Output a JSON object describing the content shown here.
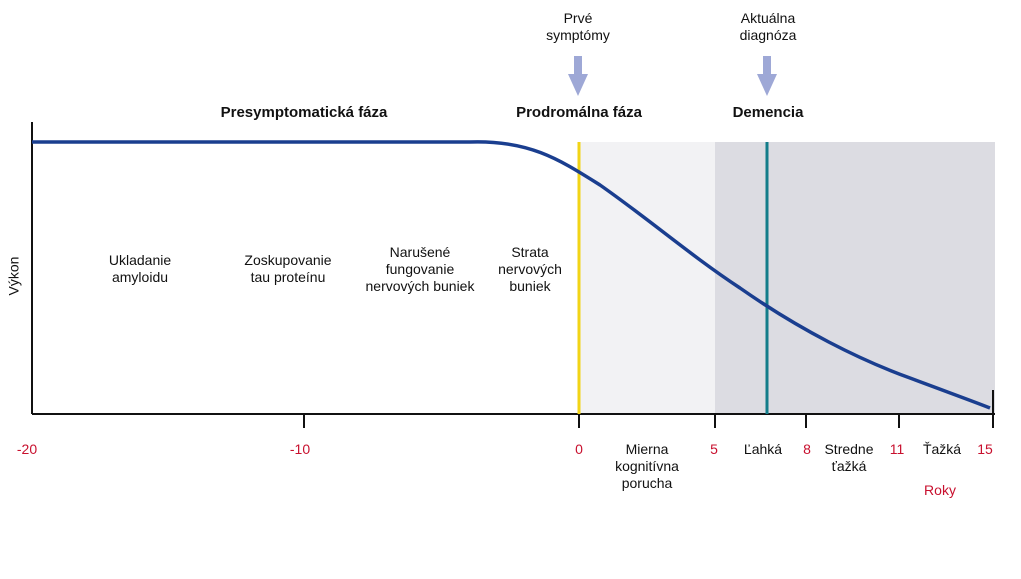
{
  "phases": {
    "presymptomatic": "Presymptomatická fáza",
    "prodromal": "Prodromálna fáza",
    "dementia": "Demencia"
  },
  "markers": {
    "first_symptoms": "Prvé\nsymptómy",
    "current_diagnosis": "Aktuálna\ndiagnóza"
  },
  "processes": [
    "Ukladanie\namyloidu",
    "Zoskupovanie\ntau proteínu",
    "Narušené\nfungovanie\nnervových buniek",
    "Strata\nnervových\nbuniek"
  ],
  "stages": {
    "mild_cognitive": "Mierna\nkognitívna\nporucha",
    "mild": "Ľahká",
    "moderate": "Stredne\nťažká",
    "severe": "Ťažká"
  },
  "axes": {
    "ylabel": "Výkon",
    "xlabel": "Roky",
    "ticks": [
      "-20",
      "-10",
      "0",
      "5",
      "8",
      "11",
      "15"
    ]
  },
  "colors": {
    "curve": "#1a3e8f",
    "first_symptoms_line": "#f2d416",
    "diagnosis_line": "#137d8a",
    "prodromal_band": "#f2f2f4",
    "dementia_band": "#dcdce2",
    "arrow": "#9ea8d6",
    "tick_label": "#c8102e"
  }
}
